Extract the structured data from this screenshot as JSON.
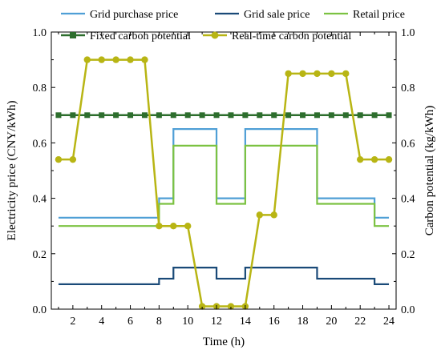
{
  "chart_data": {
    "type": "line",
    "title": "",
    "xlabel": "Time (h)",
    "ylabel": "Electricity price (CNY/kWh)",
    "y2label": "Carbon potential (kg/kWh)",
    "xlim": [
      0.5,
      24.5
    ],
    "ylim": [
      0,
      1.0
    ],
    "y2lim": [
      0,
      1.0
    ],
    "x_ticks": [
      2,
      4,
      6,
      8,
      10,
      12,
      14,
      16,
      18,
      20,
      22,
      24
    ],
    "x_tick_labels": [
      "2",
      "4",
      "6",
      "8",
      "10",
      "12",
      "14",
      "16",
      "18",
      "20",
      "22",
      "24"
    ],
    "y_ticks": [
      0,
      0.2,
      0.4,
      0.6,
      0.8,
      1.0
    ],
    "y_tick_labels": [
      "0.0",
      "0.2",
      "0.4",
      "0.6",
      "0.8",
      "1.0"
    ],
    "y2_ticks": [
      0,
      0.2,
      0.4,
      0.6,
      0.8,
      1.0
    ],
    "y2_tick_labels": [
      "0.0",
      "0.2",
      "0.4",
      "0.6",
      "0.8",
      "1.0"
    ],
    "grid": false,
    "legend_position": "top",
    "series": [
      {
        "name": "Grid purchase price",
        "kind": "step",
        "axis": "left",
        "color": "#4f9fd6",
        "x": [
          1,
          8,
          9,
          12,
          14,
          19,
          23,
          24
        ],
        "values": [
          0.33,
          0.4,
          0.65,
          0.4,
          0.65,
          0.4,
          0.33,
          0.33
        ]
      },
      {
        "name": "Grid sale price",
        "kind": "step",
        "axis": "left",
        "color": "#1a4a78",
        "x": [
          1,
          8,
          9,
          12,
          14,
          19,
          23,
          24
        ],
        "values": [
          0.09,
          0.11,
          0.15,
          0.11,
          0.15,
          0.11,
          0.09,
          0.09
        ]
      },
      {
        "name": "Retail price",
        "kind": "step",
        "axis": "left",
        "color": "#7cc242",
        "x": [
          1,
          8,
          9,
          12,
          14,
          19,
          23,
          24
        ],
        "values": [
          0.3,
          0.38,
          0.59,
          0.38,
          0.59,
          0.38,
          0.3,
          0.3
        ]
      },
      {
        "name": "Fixed carbon potential",
        "kind": "line-square",
        "axis": "right",
        "color": "#2d6e2d",
        "x": [
          1,
          2,
          3,
          4,
          5,
          6,
          7,
          8,
          9,
          10,
          11,
          12,
          13,
          14,
          15,
          16,
          17,
          18,
          19,
          20,
          21,
          22,
          23,
          24
        ],
        "values": [
          0.7,
          0.7,
          0.7,
          0.7,
          0.7,
          0.7,
          0.7,
          0.7,
          0.7,
          0.7,
          0.7,
          0.7,
          0.7,
          0.7,
          0.7,
          0.7,
          0.7,
          0.7,
          0.7,
          0.7,
          0.7,
          0.7,
          0.7,
          0.7
        ]
      },
      {
        "name": "Real-time carbon potential",
        "kind": "line-circle",
        "axis": "right",
        "color": "#b8b514",
        "x": [
          1,
          2,
          3,
          4,
          5,
          6,
          7,
          8,
          9,
          10,
          11,
          12,
          13,
          14,
          15,
          16,
          17,
          18,
          19,
          20,
          21,
          22,
          23,
          24
        ],
        "values": [
          0.54,
          0.54,
          0.9,
          0.9,
          0.9,
          0.9,
          0.9,
          0.3,
          0.3,
          0.3,
          0.01,
          0.01,
          0.01,
          0.01,
          0.34,
          0.34,
          0.85,
          0.85,
          0.85,
          0.85,
          0.85,
          0.54,
          0.54,
          0.54
        ]
      }
    ]
  }
}
